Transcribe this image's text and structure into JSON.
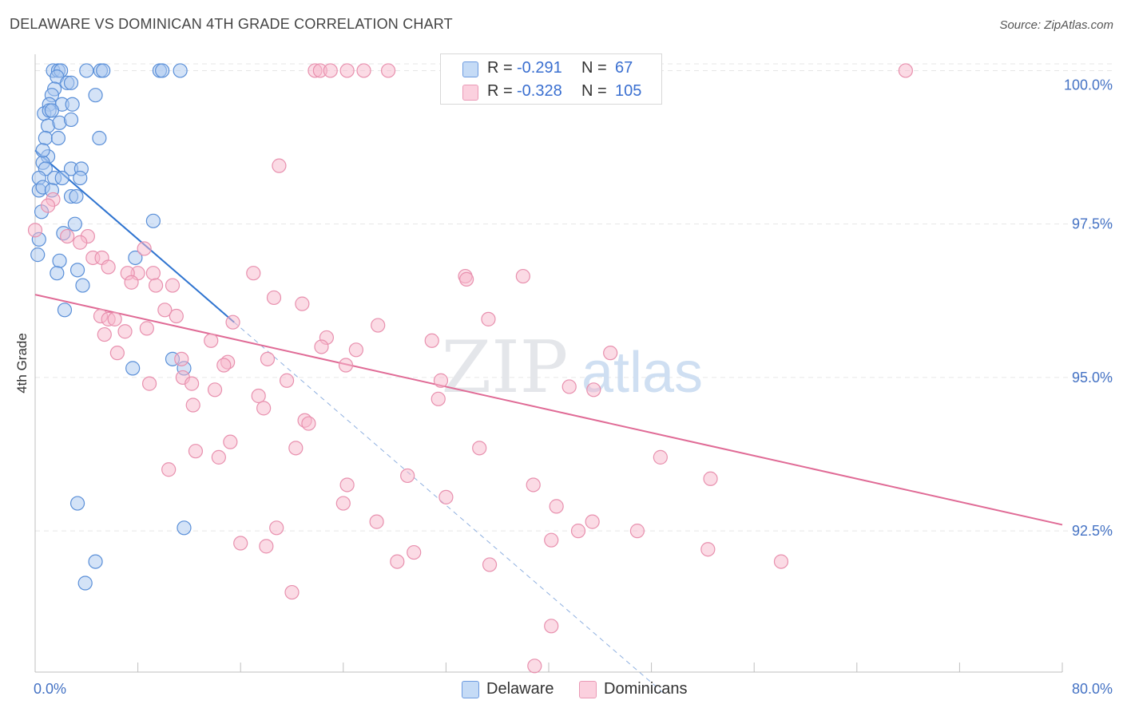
{
  "title": "DELAWARE VS DOMINICAN 4TH GRADE CORRELATION CHART",
  "source": "Source: ZipAtlas.com",
  "watermark": {
    "zip": "ZIP",
    "atlas": "atlas"
  },
  "legend": {
    "rows": [
      {
        "r_label": "R =",
        "r_value": "-0.291",
        "n_label": "N =",
        "n_value": "67"
      },
      {
        "r_label": "R =",
        "r_value": "-0.328",
        "n_label": "N =",
        "n_value": "105"
      }
    ]
  },
  "bottom_legend": {
    "delaware": "Delaware",
    "dominicans": "Dominicans"
  },
  "colors": {
    "delaware_fill": "#aac8f0",
    "delaware_stroke": "#5a8fd8",
    "delaware_line": "#2f74d0",
    "dominican_fill": "#f7b8cc",
    "dominican_stroke": "#e890ae",
    "dominican_line": "#e06b96",
    "grid": "#e6e6e6",
    "tick_text": "#4472c4"
  },
  "chart_data": {
    "type": "scatter",
    "title": "DELAWARE VS DOMINICAN 4TH GRADE CORRELATION CHART",
    "xlabel": "",
    "ylabel": "4th Grade",
    "xlim": [
      0,
      80
    ],
    "ylim": [
      90.2,
      100.5
    ],
    "x_tick_labels": [
      "0.0%",
      "80.0%"
    ],
    "y_ticks": [
      92.5,
      95.0,
      97.5,
      100.0
    ],
    "y_tick_labels": [
      "92.5%",
      "95.0%",
      "97.5%",
      "100.0%"
    ],
    "series": [
      {
        "name": "Delaware",
        "R": -0.291,
        "N": 67,
        "trend": {
          "x0": 0.0,
          "y0": 98.7,
          "x1": 15.5,
          "y1": 95.9,
          "dash_to_x": 49.0
        },
        "points": [
          [
            1.4,
            100.0
          ],
          [
            1.8,
            100.0
          ],
          [
            2.0,
            100.0
          ],
          [
            4.0,
            100.0
          ],
          [
            5.1,
            100.0
          ],
          [
            5.3,
            100.0
          ],
          [
            9.7,
            100.0
          ],
          [
            9.9,
            100.0
          ],
          [
            11.3,
            100.0
          ],
          [
            1.7,
            99.9
          ],
          [
            1.5,
            99.7
          ],
          [
            2.5,
            99.8
          ],
          [
            2.8,
            99.8
          ],
          [
            1.3,
            99.6
          ],
          [
            4.7,
            99.6
          ],
          [
            1.1,
            99.45
          ],
          [
            2.1,
            99.45
          ],
          [
            2.9,
            99.45
          ],
          [
            0.7,
            99.3
          ],
          [
            1.1,
            99.35
          ],
          [
            1.3,
            99.35
          ],
          [
            1.0,
            99.1
          ],
          [
            1.9,
            99.15
          ],
          [
            2.8,
            99.2
          ],
          [
            0.8,
            98.9
          ],
          [
            1.8,
            98.9
          ],
          [
            5.0,
            98.9
          ],
          [
            1.0,
            98.6
          ],
          [
            0.6,
            98.5
          ],
          [
            0.6,
            98.7
          ],
          [
            0.8,
            98.4
          ],
          [
            2.8,
            98.4
          ],
          [
            3.6,
            98.4
          ],
          [
            0.3,
            98.25
          ],
          [
            1.5,
            98.25
          ],
          [
            2.1,
            98.25
          ],
          [
            3.5,
            98.25
          ],
          [
            0.3,
            98.05
          ],
          [
            0.6,
            98.1
          ],
          [
            1.3,
            98.05
          ],
          [
            2.8,
            97.95
          ],
          [
            3.2,
            97.95
          ],
          [
            0.5,
            97.7
          ],
          [
            3.1,
            97.5
          ],
          [
            9.2,
            97.55
          ],
          [
            2.2,
            97.35
          ],
          [
            0.3,
            97.25
          ],
          [
            7.8,
            96.95
          ],
          [
            1.9,
            96.9
          ],
          [
            3.3,
            96.75
          ],
          [
            1.7,
            96.7
          ],
          [
            3.7,
            96.5
          ],
          [
            2.3,
            96.1
          ],
          [
            0.2,
            97.0
          ],
          [
            10.7,
            95.3
          ],
          [
            11.6,
            95.15
          ],
          [
            7.6,
            95.15
          ],
          [
            3.3,
            92.95
          ],
          [
            11.6,
            92.55
          ],
          [
            4.7,
            92.0
          ],
          [
            3.9,
            91.65
          ]
        ]
      },
      {
        "name": "Dominicans",
        "R": -0.328,
        "N": 105,
        "trend": {
          "x0": 0.0,
          "y0": 96.35,
          "x1": 80.0,
          "y1": 92.6
        },
        "points": [
          [
            21.8,
            100.0
          ],
          [
            22.2,
            100.0
          ],
          [
            23.0,
            100.0
          ],
          [
            24.3,
            100.0
          ],
          [
            25.6,
            100.0
          ],
          [
            27.5,
            100.0
          ],
          [
            33.0,
            100.0
          ],
          [
            33.3,
            100.0
          ],
          [
            67.8,
            100.0
          ],
          [
            19.0,
            98.45
          ],
          [
            1.4,
            97.9
          ],
          [
            1.0,
            97.8
          ],
          [
            2.5,
            97.3
          ],
          [
            4.1,
            97.3
          ],
          [
            3.5,
            97.2
          ],
          [
            0.0,
            97.4
          ],
          [
            8.5,
            97.1
          ],
          [
            4.5,
            96.95
          ],
          [
            5.2,
            96.95
          ],
          [
            5.7,
            96.8
          ],
          [
            8.0,
            96.7
          ],
          [
            9.2,
            96.7
          ],
          [
            17.0,
            96.7
          ],
          [
            7.2,
            96.7
          ],
          [
            7.5,
            96.55
          ],
          [
            33.5,
            96.65
          ],
          [
            33.6,
            96.6
          ],
          [
            38.0,
            96.65
          ],
          [
            9.4,
            96.5
          ],
          [
            10.7,
            96.5
          ],
          [
            18.6,
            96.3
          ],
          [
            20.8,
            96.2
          ],
          [
            10.1,
            96.1
          ],
          [
            5.1,
            96.0
          ],
          [
            11.0,
            96.0
          ],
          [
            5.7,
            95.95
          ],
          [
            6.2,
            95.95
          ],
          [
            15.4,
            95.9
          ],
          [
            26.7,
            95.85
          ],
          [
            35.3,
            95.95
          ],
          [
            8.7,
            95.8
          ],
          [
            7.0,
            95.75
          ],
          [
            5.4,
            95.7
          ],
          [
            22.7,
            95.65
          ],
          [
            13.7,
            95.6
          ],
          [
            30.9,
            95.6
          ],
          [
            22.3,
            95.5
          ],
          [
            25.0,
            95.45
          ],
          [
            6.4,
            95.4
          ],
          [
            44.8,
            95.4
          ],
          [
            11.4,
            95.3
          ],
          [
            15.0,
            95.25
          ],
          [
            18.1,
            95.3
          ],
          [
            14.7,
            95.2
          ],
          [
            24.2,
            95.2
          ],
          [
            11.5,
            95.0
          ],
          [
            19.6,
            94.95
          ],
          [
            8.9,
            94.9
          ],
          [
            12.2,
            94.9
          ],
          [
            31.6,
            94.95
          ],
          [
            14.0,
            94.8
          ],
          [
            43.5,
            94.8
          ],
          [
            41.6,
            94.85
          ],
          [
            17.4,
            94.7
          ],
          [
            31.4,
            94.65
          ],
          [
            12.3,
            94.55
          ],
          [
            17.8,
            94.5
          ],
          [
            21.0,
            94.3
          ],
          [
            21.3,
            94.25
          ],
          [
            15.2,
            93.95
          ],
          [
            12.5,
            93.8
          ],
          [
            20.3,
            93.85
          ],
          [
            34.6,
            93.85
          ],
          [
            48.7,
            93.7
          ],
          [
            14.3,
            93.7
          ],
          [
            10.4,
            93.5
          ],
          [
            52.6,
            93.35
          ],
          [
            29.0,
            93.4
          ],
          [
            24.3,
            93.25
          ],
          [
            38.8,
            93.25
          ],
          [
            32.0,
            93.05
          ],
          [
            24.0,
            92.95
          ],
          [
            40.6,
            92.9
          ],
          [
            26.6,
            92.65
          ],
          [
            43.4,
            92.65
          ],
          [
            18.8,
            92.55
          ],
          [
            46.9,
            92.5
          ],
          [
            42.3,
            92.5
          ],
          [
            16.0,
            92.3
          ],
          [
            18.0,
            92.25
          ],
          [
            40.2,
            92.35
          ],
          [
            29.5,
            92.15
          ],
          [
            52.4,
            92.2
          ],
          [
            58.1,
            92.0
          ],
          [
            35.4,
            91.95
          ],
          [
            28.2,
            92.0
          ],
          [
            20.0,
            91.5
          ],
          [
            40.2,
            90.95
          ],
          [
            38.9,
            90.3
          ]
        ]
      }
    ]
  }
}
